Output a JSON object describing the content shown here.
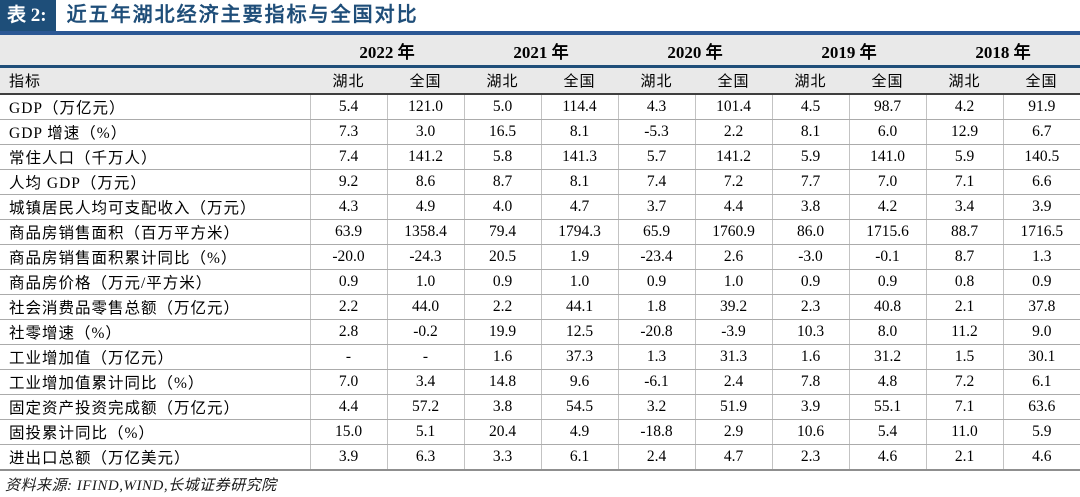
{
  "title": {
    "badge": "表 2:",
    "text": "近五年湖北经济主要指标与全国对比"
  },
  "colors": {
    "accent_navy": "#1F4E79",
    "rule_blue": "#2B5794",
    "header_bg": "#E9E9E9"
  },
  "table": {
    "indicator_header": "指标",
    "years": [
      "2022 年",
      "2021 年",
      "2020 年",
      "2019 年",
      "2018 年"
    ],
    "region_headers": [
      "湖北",
      "全国",
      "湖北",
      "全国",
      "湖北",
      "全国",
      "湖北",
      "全国",
      "湖北",
      "全国"
    ],
    "rows": [
      {
        "label": "GDP（万亿元）",
        "values": [
          "5.4",
          "121.0",
          "5.0",
          "114.4",
          "4.3",
          "101.4",
          "4.5",
          "98.7",
          "4.2",
          "91.9"
        ]
      },
      {
        "label": "GDP 增速（%）",
        "values": [
          "7.3",
          "3.0",
          "16.5",
          "8.1",
          "-5.3",
          "2.2",
          "8.1",
          "6.0",
          "12.9",
          "6.7"
        ]
      },
      {
        "label": "常住人口（千万人）",
        "values": [
          "7.4",
          "141.2",
          "5.8",
          "141.3",
          "5.7",
          "141.2",
          "5.9",
          "141.0",
          "5.9",
          "140.5"
        ]
      },
      {
        "label": "人均 GDP（万元）",
        "values": [
          "9.2",
          "8.6",
          "8.7",
          "8.1",
          "7.4",
          "7.2",
          "7.7",
          "7.0",
          "7.1",
          "6.6"
        ]
      },
      {
        "label": "城镇居民人均可支配收入（万元）",
        "values": [
          "4.3",
          "4.9",
          "4.0",
          "4.7",
          "3.7",
          "4.4",
          "3.8",
          "4.2",
          "3.4",
          "3.9"
        ]
      },
      {
        "label": "商品房销售面积（百万平方米）",
        "values": [
          "63.9",
          "1358.4",
          "79.4",
          "1794.3",
          "65.9",
          "1760.9",
          "86.0",
          "1715.6",
          "88.7",
          "1716.5"
        ]
      },
      {
        "label": "商品房销售面积累计同比（%）",
        "values": [
          "-20.0",
          "-24.3",
          "20.5",
          "1.9",
          "-23.4",
          "2.6",
          "-3.0",
          "-0.1",
          "8.7",
          "1.3"
        ]
      },
      {
        "label": "商品房价格（万元/平方米）",
        "values": [
          "0.9",
          "1.0",
          "0.9",
          "1.0",
          "0.9",
          "1.0",
          "0.9",
          "0.9",
          "0.8",
          "0.9"
        ]
      },
      {
        "label": "社会消费品零售总额（万亿元）",
        "values": [
          "2.2",
          "44.0",
          "2.2",
          "44.1",
          "1.8",
          "39.2",
          "2.3",
          "40.8",
          "2.1",
          "37.8"
        ]
      },
      {
        "label": "社零增速（%）",
        "values": [
          "2.8",
          "-0.2",
          "19.9",
          "12.5",
          "-20.8",
          "-3.9",
          "10.3",
          "8.0",
          "11.2",
          "9.0"
        ]
      },
      {
        "label": "工业增加值（万亿元）",
        "values": [
          "-",
          "-",
          "1.6",
          "37.3",
          "1.3",
          "31.3",
          "1.6",
          "31.2",
          "1.5",
          "30.1"
        ]
      },
      {
        "label": "工业增加值累计同比（%）",
        "values": [
          "7.0",
          "3.4",
          "14.8",
          "9.6",
          "-6.1",
          "2.4",
          "7.8",
          "4.8",
          "7.2",
          "6.1"
        ]
      },
      {
        "label": "固定资产投资完成额（万亿元）",
        "values": [
          "4.4",
          "57.2",
          "3.8",
          "54.5",
          "3.2",
          "51.9",
          "3.9",
          "55.1",
          "7.1",
          "63.6"
        ]
      },
      {
        "label": "固投累计同比（%）",
        "values": [
          "15.0",
          "5.1",
          "20.4",
          "4.9",
          "-18.8",
          "2.9",
          "10.6",
          "5.4",
          "11.0",
          "5.9"
        ]
      },
      {
        "label": "进出口总额（万亿美元）",
        "values": [
          "3.9",
          "6.3",
          "3.3",
          "6.1",
          "2.4",
          "4.7",
          "2.3",
          "4.6",
          "2.1",
          "4.6"
        ]
      }
    ]
  },
  "footer": {
    "source": "资料来源: IFIND,WIND,长城证券研究院"
  }
}
